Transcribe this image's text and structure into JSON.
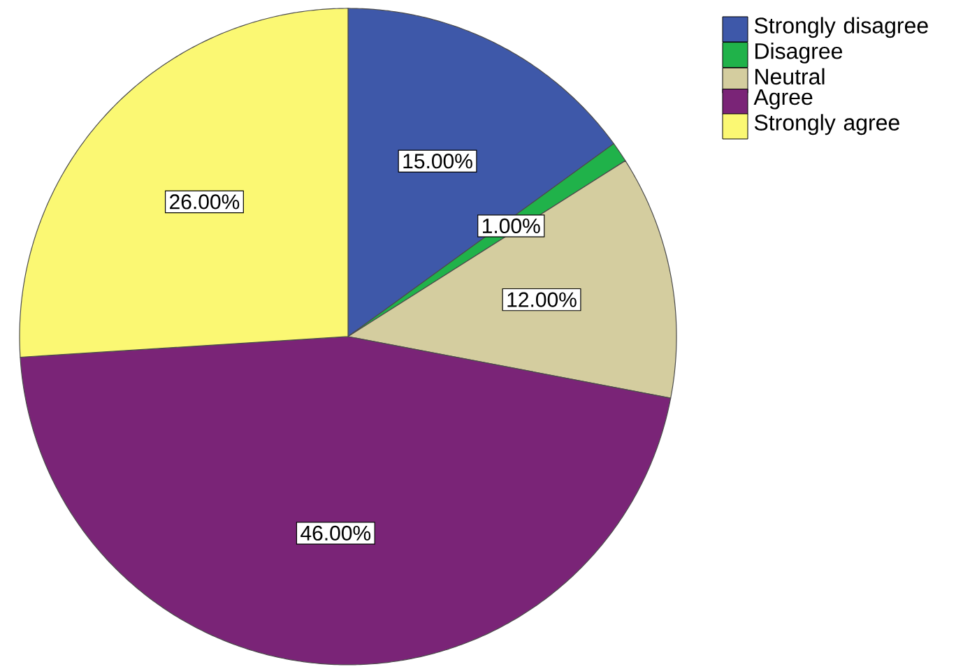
{
  "chart_data": {
    "type": "pie",
    "categories": [
      "Strongly disagree",
      "Disagree",
      "Neutral",
      "Agree",
      "Strongly agree"
    ],
    "values": [
      15,
      1,
      12,
      46,
      26
    ],
    "colors": [
      "#3e58a9",
      "#20b24a",
      "#d4cd9f",
      "#7a2477",
      "#fbf873"
    ],
    "value_labels": [
      "15.00%",
      "1.00%",
      "12.00%",
      "46.00%",
      "26.00%"
    ],
    "legend": "top right"
  }
}
